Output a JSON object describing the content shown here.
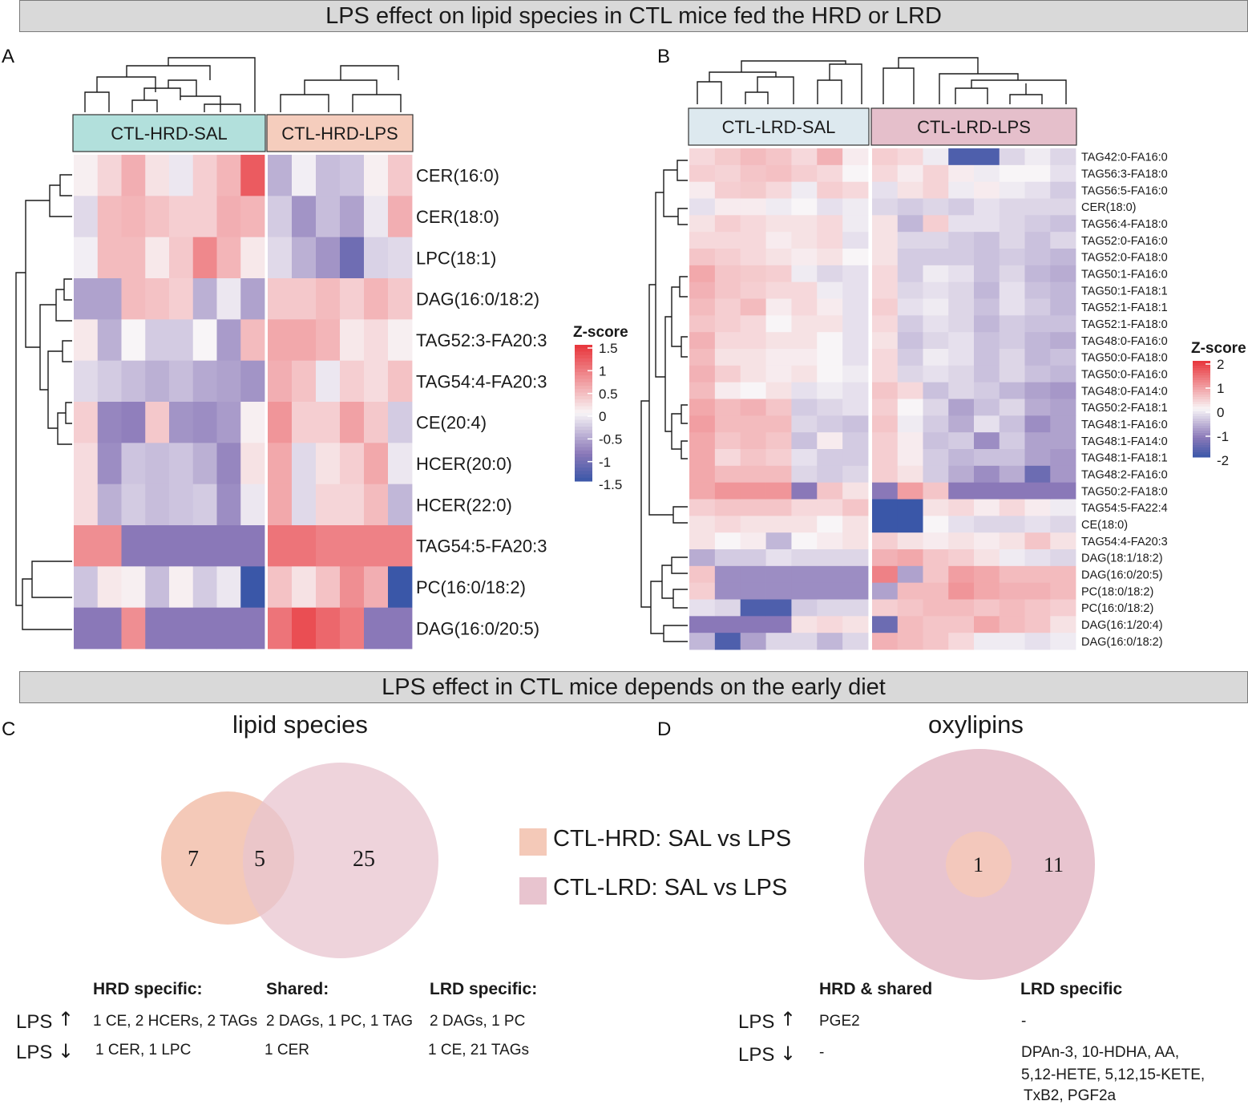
{
  "banners": {
    "top": "LPS effect on lipid species in CTL mice fed the HRD or LRD",
    "middle": "LPS effect in CTL mice depends on the early diet"
  },
  "panel_labels": {
    "a": "A",
    "b": "B",
    "c": "C",
    "d": "D"
  },
  "colors": {
    "neg": "#3a57a8",
    "mid_neg": "#8a78b8",
    "zero": "#f8f5f7",
    "pos": "#e8343a",
    "hrd_sal_header": "#b2e0dc",
    "hrd_lps_header": "#f5cdbd",
    "lrd_sal_header": "#dde9ef",
    "lrd_lps_header": "#e5bfcb",
    "venn_hrd": "#f4c9b8",
    "venn_lrd": "#e8c4cf"
  },
  "chart_data": [
    {
      "type": "heatmap",
      "panel": "A",
      "groups": [
        {
          "name": "CTL-HRD-SAL",
          "n": 8
        },
        {
          "name": "CTL-HRD-LPS",
          "n": 6
        }
      ],
      "rows": [
        "CER(16:0)",
        "CER(18:0)",
        "LPC(18:1)",
        "DAG(16:0/18:2)",
        "TAG52:3-FA20:3",
        "TAG54:4-FA20:3",
        "CE(20:4)",
        "HCER(20:0)",
        "HCER(22:0)",
        "TAG54:5-FA20:3",
        "PC(16:0/18:2)",
        "DAG(16:0/20:5)"
      ],
      "values": [
        [
          0.05,
          0.25,
          0.55,
          0.15,
          -0.1,
          0.3,
          0.5,
          1.2,
          -0.5,
          -0.05,
          -0.4,
          -0.35,
          0.05,
          0.35
        ],
        [
          -0.2,
          0.45,
          0.5,
          0.4,
          0.3,
          0.3,
          0.55,
          0.5,
          -0.3,
          -0.7,
          -0.4,
          -0.6,
          -0.1,
          0.55
        ],
        [
          -0.05,
          0.45,
          0.45,
          0.1,
          0.35,
          0.85,
          0.5,
          0.1,
          -0.2,
          -0.5,
          -0.7,
          -1.1,
          -0.25,
          -0.2
        ],
        [
          -0.6,
          -0.6,
          0.45,
          0.4,
          0.3,
          -0.5,
          -0.1,
          -0.6,
          0.35,
          0.35,
          0.45,
          0.3,
          0.5,
          0.35
        ],
        [
          0.1,
          -0.5,
          0.0,
          -0.3,
          -0.3,
          0.0,
          -0.65,
          0.45,
          0.6,
          0.6,
          0.5,
          0.1,
          0.2,
          0.05
        ],
        [
          -0.2,
          -0.3,
          -0.4,
          -0.5,
          -0.4,
          -0.55,
          -0.6,
          -0.7,
          0.55,
          0.4,
          -0.1,
          0.3,
          0.2,
          0.4
        ],
        [
          0.3,
          -0.8,
          -0.85,
          0.35,
          -0.7,
          -0.75,
          -0.65,
          0.05,
          0.75,
          0.3,
          0.3,
          0.65,
          0.35,
          -0.3
        ],
        [
          0.2,
          -0.75,
          -0.35,
          -0.4,
          -0.35,
          -0.5,
          -0.8,
          0.15,
          0.6,
          -0.2,
          0.15,
          0.3,
          0.6,
          -0.1
        ],
        [
          0.2,
          -0.5,
          -0.3,
          -0.4,
          -0.35,
          -0.3,
          -0.75,
          -0.1,
          0.6,
          -0.2,
          0.25,
          0.25,
          0.45,
          -0.45
        ],
        [
          0.8,
          0.8,
          -0.9,
          -0.9,
          -0.9,
          -0.9,
          -0.9,
          -0.9,
          1.0,
          1.0,
          0.9,
          0.9,
          0.9,
          0.9
        ],
        [
          -0.35,
          0.1,
          0.05,
          -0.4,
          0.05,
          -0.3,
          -0.1,
          -1.5,
          0.4,
          0.15,
          0.4,
          0.8,
          0.55,
          -1.5
        ],
        [
          -0.9,
          -0.9,
          0.8,
          -0.9,
          -0.9,
          -0.9,
          -0.9,
          -0.9,
          1.0,
          1.3,
          1.1,
          0.95,
          -0.9,
          -0.9
        ]
      ],
      "legend": {
        "title": "Z-score",
        "ticks": [
          "1.5",
          "1",
          "0.5",
          "0",
          "-0.5",
          "-1",
          "-1.5"
        ],
        "range": [
          -1.5,
          1.5
        ]
      }
    },
    {
      "type": "heatmap",
      "panel": "B",
      "groups": [
        {
          "name": "CTL-LRD-SAL",
          "n": 7
        },
        {
          "name": "CTL-LRD-LPS",
          "n": 8
        }
      ],
      "rows": [
        "TAG42:0-FA16:0",
        "TAG56:3-FA18:0",
        "TAG56:5-FA16:0",
        "CER(18:0)",
        "TAG56:4-FA18:0",
        "TAG52:0-FA16:0",
        "TAG52:0-FA18:0",
        "TAG50:1-FA16:0",
        "TAG50:1-FA18:1",
        "TAG52:1-FA18:1",
        "TAG52:1-FA18:0",
        "TAG48:0-FA16:0",
        "TAG50:0-FA18:0",
        "TAG50:0-FA16:0",
        "TAG48:0-FA14:0",
        "TAG50:2-FA18:1",
        "TAG48:1-FA16:0",
        "TAG48:1-FA14:0",
        "TAG48:1-FA18:1",
        "TAG48:2-FA16:0",
        "TAG50:2-FA18:0",
        "TAG54:5-FA22:4",
        "CE(18:0)",
        "TAG54:4-FA20:3",
        "DAG(18:1/18:2)",
        "DAG(16:0/20:5)",
        "PC(18:0/18:2)",
        "PC(16:0/18:2)",
        "DAG(16:1/20:4)",
        "DAG(16:0/18:2)"
      ],
      "values": [
        [
          0.3,
          0.45,
          0.6,
          0.5,
          0.3,
          0.7,
          0.1,
          0.4,
          0.3,
          -0.1,
          -1.8,
          -1.8,
          -0.3,
          -0.1,
          -0.3
        ],
        [
          0.4,
          0.35,
          0.5,
          0.55,
          0.4,
          0.3,
          0.0,
          0.3,
          0.1,
          0.35,
          0.1,
          -0.1,
          0.0,
          0.0,
          -0.2
        ],
        [
          0.1,
          0.4,
          0.45,
          0.3,
          -0.1,
          0.4,
          0.3,
          -0.2,
          0.2,
          0.35,
          -0.1,
          0.1,
          -0.1,
          -0.2,
          -0.4
        ],
        [
          -0.2,
          0.1,
          0.1,
          -0.1,
          0.0,
          -0.2,
          -0.1,
          -0.3,
          -0.4,
          -0.3,
          -0.4,
          -0.2,
          -0.3,
          -0.3,
          -0.3
        ],
        [
          0.2,
          0.4,
          0.3,
          0.2,
          0.2,
          0.3,
          -0.1,
          0.2,
          -0.6,
          0.4,
          -0.2,
          -0.2,
          -0.3,
          -0.4,
          -0.5
        ],
        [
          0.3,
          0.3,
          0.3,
          0.1,
          0.2,
          0.3,
          -0.2,
          0.2,
          -0.3,
          -0.3,
          -0.4,
          -0.5,
          -0.3,
          -0.5,
          -0.3
        ],
        [
          0.5,
          0.4,
          0.3,
          0.2,
          0.1,
          0.2,
          0.0,
          0.2,
          -0.4,
          -0.4,
          -0.4,
          -0.5,
          -0.4,
          -0.5,
          -0.6
        ],
        [
          0.8,
          0.5,
          0.45,
          0.4,
          -0.1,
          -0.3,
          -0.2,
          0.3,
          -0.4,
          -0.1,
          -0.2,
          -0.5,
          -0.3,
          -0.6,
          -0.7
        ],
        [
          0.7,
          0.5,
          0.4,
          0.3,
          0.3,
          -0.1,
          -0.2,
          0.3,
          -0.3,
          -0.2,
          -0.3,
          -0.6,
          -0.2,
          -0.5,
          -0.6
        ],
        [
          0.6,
          0.4,
          0.6,
          0.1,
          0.3,
          0.1,
          -0.2,
          0.4,
          -0.2,
          -0.1,
          -0.3,
          -0.5,
          -0.2,
          -0.4,
          -0.6
        ],
        [
          0.5,
          0.4,
          0.3,
          0.0,
          0.2,
          0.2,
          -0.2,
          0.3,
          -0.4,
          -0.2,
          -0.3,
          -0.6,
          -0.4,
          -0.5,
          -0.5
        ],
        [
          0.7,
          0.3,
          0.3,
          0.2,
          0.2,
          0.0,
          -0.2,
          0.2,
          -0.5,
          -0.3,
          -0.2,
          -0.5,
          -0.4,
          -0.6,
          -0.7
        ],
        [
          0.6,
          0.2,
          0.2,
          0.1,
          0.1,
          0.0,
          -0.2,
          0.3,
          -0.4,
          -0.1,
          -0.2,
          -0.5,
          -0.3,
          -0.6,
          -0.5
        ],
        [
          0.7,
          0.4,
          0.2,
          0.1,
          0.2,
          0.0,
          -0.1,
          0.3,
          -0.3,
          -0.2,
          -0.3,
          -0.5,
          -0.3,
          -0.5,
          -0.6
        ],
        [
          0.6,
          0.1,
          0.0,
          0.2,
          -0.2,
          -0.1,
          -0.2,
          0.5,
          0.3,
          -0.5,
          -0.3,
          -0.4,
          -0.6,
          -0.8,
          -0.9
        ],
        [
          0.8,
          0.6,
          0.7,
          0.5,
          -0.4,
          -0.3,
          -0.2,
          0.4,
          0.0,
          -0.3,
          -0.8,
          -0.5,
          -0.3,
          -0.7,
          -0.8
        ],
        [
          0.9,
          0.6,
          0.6,
          0.6,
          -0.3,
          -0.4,
          -0.5,
          0.5,
          -0.1,
          -0.4,
          -0.7,
          -0.2,
          -0.5,
          -1.0,
          -0.8
        ],
        [
          0.8,
          0.5,
          0.6,
          0.5,
          -0.5,
          0.1,
          -0.4,
          0.4,
          0.1,
          -0.5,
          -0.4,
          -1.0,
          -0.4,
          -0.8,
          -0.8
        ],
        [
          0.8,
          0.3,
          0.5,
          0.4,
          -0.2,
          -0.4,
          -0.4,
          0.4,
          0.1,
          -0.4,
          -0.6,
          -0.5,
          -0.5,
          -0.8,
          -0.9
        ],
        [
          0.8,
          0.6,
          0.6,
          0.6,
          -0.3,
          -0.4,
          -0.3,
          0.4,
          0.2,
          -0.4,
          -0.7,
          -1.0,
          -0.7,
          -1.5,
          -0.9
        ],
        [
          0.8,
          1.0,
          1.0,
          1.0,
          -1.2,
          0.5,
          0.2,
          -1.2,
          0.9,
          0.5,
          -1.2,
          -1.2,
          -1.2,
          -1.2,
          -1.2
        ],
        [
          0.4,
          0.5,
          0.5,
          0.5,
          0.3,
          0.3,
          0.5,
          -2.0,
          -2.0,
          0.2,
          0.3,
          0.1,
          0.3,
          0.1,
          -0.1
        ],
        [
          0.2,
          0.3,
          0.2,
          0.2,
          0.2,
          0.0,
          0.2,
          -2.0,
          -2.0,
          0.0,
          -0.2,
          -0.3,
          -0.3,
          -0.2,
          -0.3
        ],
        [
          0.2,
          0.0,
          0.1,
          -0.6,
          0.0,
          0.1,
          0.2,
          0.4,
          0.2,
          0.1,
          0.2,
          0.1,
          0.2,
          0.5,
          0.2
        ],
        [
          -0.7,
          -0.4,
          -0.4,
          -0.2,
          -0.3,
          -0.3,
          -0.3,
          0.7,
          0.8,
          0.5,
          0.4,
          0.2,
          -0.1,
          -0.2,
          -0.3
        ],
        [
          0.5,
          -1.0,
          -1.0,
          -1.0,
          -1.0,
          -1.0,
          -1.0,
          1.2,
          -0.8,
          0.5,
          0.9,
          0.8,
          0.6,
          0.6,
          0.6
        ],
        [
          0.4,
          -1.0,
          -1.0,
          -1.0,
          -1.0,
          -1.0,
          -1.0,
          -0.8,
          0.6,
          0.6,
          1.0,
          0.8,
          0.7,
          0.7,
          0.6
        ],
        [
          -0.2,
          -0.3,
          -1.8,
          -1.8,
          -0.4,
          -0.3,
          -0.3,
          0.4,
          0.5,
          0.6,
          0.6,
          0.5,
          0.6,
          0.5,
          0.4
        ],
        [
          -1.2,
          -1.2,
          -1.2,
          -1.2,
          0.2,
          0.3,
          0.2,
          -1.5,
          0.6,
          0.5,
          0.5,
          0.8,
          0.6,
          0.5,
          0.2
        ],
        [
          -0.6,
          -1.8,
          -0.8,
          -0.3,
          -0.3,
          -0.6,
          -0.3,
          0.7,
          0.6,
          0.5,
          0.3,
          -0.1,
          -0.1,
          -0.2,
          -0.1
        ]
      ],
      "legend": {
        "title": "Z-score",
        "ticks": [
          "2",
          "1",
          "0",
          "-1",
          "-2"
        ],
        "range": [
          -2,
          2
        ]
      }
    }
  ],
  "panel_c": {
    "title": "lipid species",
    "venn": {
      "hrd_only": "7",
      "shared": "5",
      "lrd_only": "25"
    },
    "headers": {
      "hrd": "HRD specific:",
      "shared": "Shared:",
      "lrd": "LRD specific:"
    },
    "lps_up": {
      "label": "LPS",
      "arrow": "↑",
      "hrd": "1 CE, 2 HCERs, 2 TAGs",
      "shared": "2 DAGs, 1 PC, 1 TAG",
      "lrd": "2 DAGs, 1 PC"
    },
    "lps_down": {
      "label": "LPS",
      "arrow": "↓",
      "hrd": "1 CER, 1 LPC",
      "shared": "1 CER",
      "lrd": "1 CE, 21 TAGs"
    }
  },
  "legend_c": {
    "hrd": "CTL-HRD: SAL vs LPS",
    "lrd": "CTL-LRD: SAL vs LPS"
  },
  "panel_d": {
    "title": "oxylipins",
    "venn": {
      "shared": "1",
      "lrd_only": "11"
    },
    "headers": {
      "hrd_shared": "HRD & shared",
      "lrd": "LRD specific"
    },
    "lps_up": {
      "label": "LPS",
      "arrow": "↑",
      "hrd_shared": "PGE2",
      "lrd": "-"
    },
    "lps_down": {
      "label": "LPS",
      "arrow": "↓",
      "hrd_shared": "-",
      "lrd_lines": [
        "DPAn-3, 10-HDHA, AA,",
        "5,12-HETE, 5,12,15-KETE,",
        "TxB2, PGF2a"
      ]
    }
  }
}
